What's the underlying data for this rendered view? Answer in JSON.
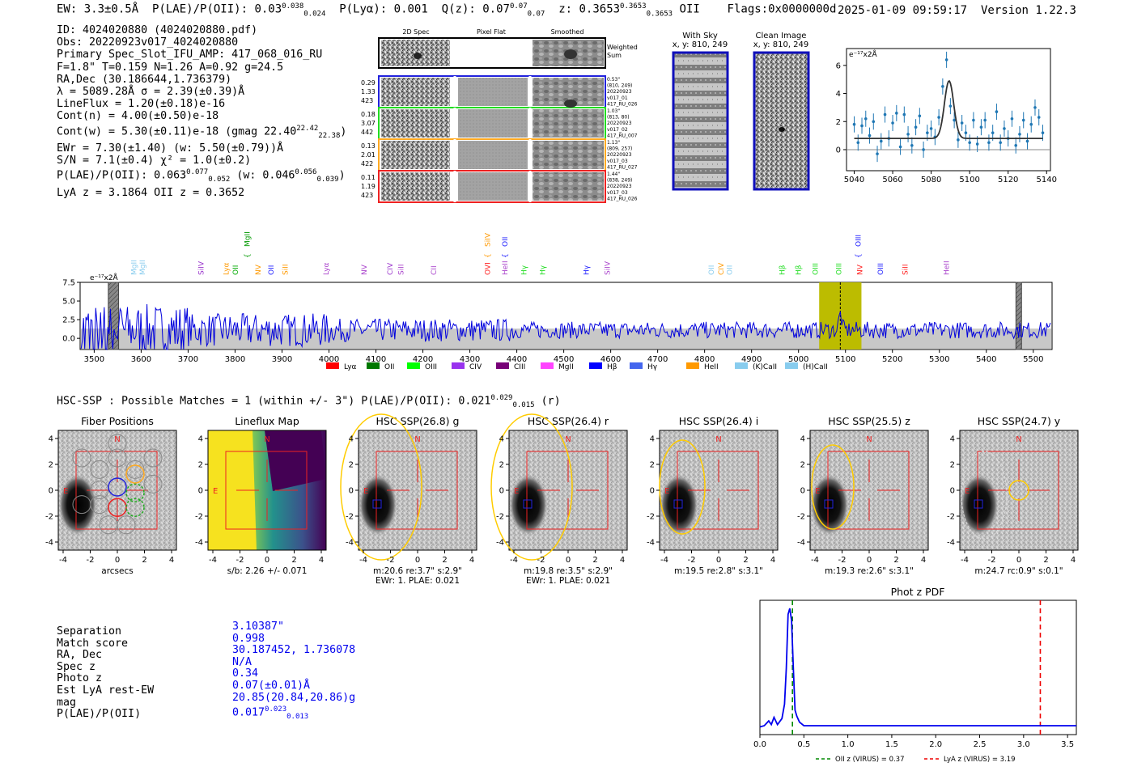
{
  "header": {
    "ew": "EW: 3.3±0.5Å",
    "plae_label": "P(LAE)/P(OII): 0.03",
    "plae_hi": "0.038",
    "plae_lo": "0.024",
    "plya": "P(Lyα): 0.001",
    "qz_label": "Q(z): 0.07",
    "qz_hi": "0.07",
    "qz_lo": "0.07",
    "z_label": "z: 0.3653",
    "z_hi": "0.3653",
    "z_lo": "0.3653",
    "z_line": "OII",
    "flags": "Flags:0x0000000d",
    "timestamp": "2025-01-09 09:59:17",
    "version": "Version 1.22.3"
  },
  "info": {
    "id": "ID: 4024020880 (4024020880.pdf)",
    "obs": "Obs: 20220923v017_4024020880",
    "primary": "Primary Spec_Slot_IFU_AMP: 417_068_016_RU",
    "fit": "F=1.8\"  T=0.159  N=1.26  A=0.92  g=24.5",
    "radec": "RA,Dec (30.186644,1.736379)",
    "lambda": "λ = 5089.28Å  σ = 2.39(±0.39)Å",
    "lineflux": "LineFlux = 1.20(±0.18)e-16",
    "contn": "Cont(n) = 4.00(±0.50)e-18",
    "contw": "Cont(w) = 5.30(±0.11)e-18 (gmag 22.40",
    "contw_hi": "22.42",
    "contw_lo": "22.38",
    "contw_end": ")",
    "ewr": "EWr = 7.30(±1.40) (w: 5.50(±0.79))Å",
    "sn": "S/N = 7.1(±0.4)  χ² = 1.0(±0.2)",
    "plae": "P(LAE)/P(OII): 0.063",
    "plae_hi": "0.077",
    "plae_lo": "0.052",
    "plae_w": "(w: 0.046",
    "plae_w_hi": "0.056",
    "plae_w_lo": "0.039",
    "plae_w_end": ")",
    "lya": "LyA z = 3.1864  OII z = 0.3652"
  },
  "cutouts": {
    "col_labels": [
      "2D Spec",
      "Pixel Flat",
      "Smoothed"
    ],
    "weighted_sum": [
      "Weighted",
      "Sum"
    ],
    "rows": [
      {
        "left": [
          "0.29",
          "1.33",
          "423"
        ],
        "right": [
          "0.53\"",
          "(810, 249)",
          "20220923",
          "v017_01",
          "417_RU_026"
        ],
        "color": "#2222dd"
      },
      {
        "left": [
          "0.18",
          "3.07",
          "442"
        ],
        "right": [
          "1.03\"",
          "(813, 80)",
          "20220923",
          "v017_02",
          "417_RU_007"
        ],
        "color": "#22dd22"
      },
      {
        "left": [
          "0.13",
          "2.01",
          "422"
        ],
        "right": [
          "1.13\"",
          "(809, 257)",
          "20220923",
          "v017_03",
          "417_RU_027"
        ],
        "color": "#ffaa22"
      },
      {
        "left": [
          "0.11",
          "1.19",
          "423"
        ],
        "right": [
          "1.44\"",
          "(838, 249)",
          "20220923",
          "v017_03",
          "417_RU_026"
        ],
        "color": "#ee2222"
      }
    ]
  },
  "sky": {
    "with_sky_title": "With Sky",
    "with_sky_coords": "x, y: 810, 249",
    "clean_title": "Clean Image",
    "clean_coords": "x, y: 810, 249"
  },
  "zoom_chart_data": {
    "type": "scatter",
    "ylabel_unit": "e⁻¹⁷x2Å",
    "xlim": [
      5036,
      5142
    ],
    "ylim": [
      -1.5,
      7.2
    ],
    "xticks": [
      "5040",
      "5060",
      "5080",
      "5100",
      "5120",
      "5140"
    ],
    "yticks": [
      "0",
      "2",
      "4",
      "6"
    ],
    "x": [
      5040,
      5042,
      5044,
      5046,
      5048,
      5050,
      5052,
      5054,
      5056,
      5058,
      5060,
      5062,
      5064,
      5066,
      5068,
      5070,
      5072,
      5074,
      5076,
      5078,
      5080,
      5082,
      5084,
      5086,
      5088,
      5090,
      5092,
      5094,
      5096,
      5098,
      5100,
      5102,
      5104,
      5106,
      5108,
      5110,
      5112,
      5114,
      5116,
      5118,
      5120,
      5122,
      5124,
      5126,
      5128,
      5130,
      5132,
      5134,
      5136,
      5138
    ],
    "y": [
      1.8,
      0.5,
      1.7,
      2.2,
      1.0,
      2.0,
      -0.3,
      0.6,
      2.5,
      0.8,
      1.9,
      2.6,
      0.2,
      2.5,
      1.1,
      0.3,
      1.6,
      2.4,
      0.0,
      1.2,
      1.5,
      0.9,
      2.3,
      4.5,
      6.4,
      3.1,
      2.1,
      0.7,
      1.9,
      1.2,
      0.5,
      2.1,
      0.4,
      1.6,
      2.1,
      0.5,
      1.2,
      2.7,
      0.5,
      1.5,
      0.8,
      2.2,
      0.3,
      1.1,
      2.1,
      0.6,
      1.8,
      3.0,
      2.3,
      1.2
    ],
    "fit_continuum": 0.8,
    "fit_amp": 4.1,
    "fit_center": 5089.3,
    "fit_sigma": 2.4
  },
  "spectrum_chart_data": {
    "type": "line",
    "ylabel_unit": "e⁻¹⁷x2Å",
    "xlim": [
      3470,
      5540
    ],
    "ylim": [
      -1.5,
      7.5
    ],
    "xticks": [
      "3500",
      "3600",
      "3700",
      "3800",
      "3900",
      "4000",
      "4100",
      "4200",
      "4300",
      "4400",
      "4500",
      "4600",
      "4700",
      "4800",
      "4900",
      "5000",
      "5100",
      "5200",
      "5300",
      "5400",
      "5500"
    ],
    "yticks": [
      "0.0",
      "2.5",
      "5.0",
      "7.5"
    ],
    "highlight_range": [
      5044,
      5134
    ],
    "line_center": 5089,
    "masked_ranges": [
      [
        3530,
        3552
      ],
      [
        5463,
        5475
      ]
    ],
    "line_markers": [
      {
        "label": "MgII",
        "x": 3585,
        "color": "#88ccee",
        "tier": 1
      },
      {
        "label": "MgII",
        "x": 3603,
        "color": "#88ccee",
        "tier": 1
      },
      {
        "label": "SiIV",
        "x": 3728,
        "color": "#9933cc",
        "tier": 1
      },
      {
        "label": "Lyα",
        "x": 3781,
        "color": "#ff9900",
        "tier": 1
      },
      {
        "label": "OII",
        "x": 3801,
        "color": "#00aa00",
        "tier": 1
      },
      {
        "label": "MgII",
        "x": 3826,
        "color": "#009900",
        "tier": 0
      },
      {
        "label": "NV",
        "x": 3849,
        "color": "#ff9900",
        "tier": 1
      },
      {
        "label": "OII",
        "x": 3877,
        "color": "#2222ff",
        "tier": 1
      },
      {
        "label": "SiII",
        "x": 3907,
        "color": "#ff9900",
        "tier": 1
      },
      {
        "label": "Lyα",
        "x": 3994,
        "color": "#aa44cc",
        "tier": 1
      },
      {
        "label": "NV",
        "x": 4075,
        "color": "#aa44cc",
        "tier": 1
      },
      {
        "label": "CIV",
        "x": 4130,
        "color": "#9933cc",
        "tier": 1
      },
      {
        "label": "SiII",
        "x": 4153,
        "color": "#aa44cc",
        "tier": 1
      },
      {
        "label": "CII",
        "x": 4223,
        "color": "#aa44cc",
        "tier": 1
      },
      {
        "label": "SiIV",
        "x": 4338,
        "color": "#ff9900",
        "tier": 0
      },
      {
        "label": "OVI",
        "x": 4338,
        "color": "#ff2222",
        "tier": 1
      },
      {
        "label": "OII",
        "x": 4375,
        "color": "#2222ff",
        "tier": 0
      },
      {
        "label": "HeII",
        "x": 4375,
        "color": "#aa44cc",
        "tier": 1
      },
      {
        "label": "Hγ",
        "x": 4415,
        "color": "#22dd22",
        "tier": 1
      },
      {
        "label": "Hγ",
        "x": 4455,
        "color": "#22dd22",
        "tier": 1
      },
      {
        "label": "Hγ",
        "x": 4548,
        "color": "#2222ff",
        "tier": 1
      },
      {
        "label": "SiIV",
        "x": 4593,
        "color": "#aa44cc",
        "tier": 1
      },
      {
        "label": "OII",
        "x": 4814,
        "color": "#88ccee",
        "tier": 1
      },
      {
        "label": "CIV",
        "x": 4835,
        "color": "#ff9900",
        "tier": 1
      },
      {
        "label": "OII",
        "x": 4853,
        "color": "#88ccee",
        "tier": 1
      },
      {
        "label": "Hβ",
        "x": 4965,
        "color": "#22dd22",
        "tier": 1
      },
      {
        "label": "Hβ",
        "x": 5000,
        "color": "#22dd22",
        "tier": 1
      },
      {
        "label": "OIII",
        "x": 5036,
        "color": "#22dd22",
        "tier": 1
      },
      {
        "label": "OIII",
        "x": 5086,
        "color": "#22dd22",
        "tier": 1
      },
      {
        "label": "OIII",
        "x": 5127,
        "color": "#2222ff",
        "tier": 0
      },
      {
        "label": "NV",
        "x": 5131,
        "color": "#ff2222",
        "tier": 1
      },
      {
        "label": "OIII",
        "x": 5175,
        "color": "#2222ff",
        "tier": 1
      },
      {
        "label": "SiII",
        "x": 5227,
        "color": "#ff2222",
        "tier": 1
      },
      {
        "label": "HeII",
        "x": 5315,
        "color": "#aa44cc",
        "tier": 1
      }
    ],
    "legend": [
      {
        "label": "Lyα",
        "color": "#ff0000"
      },
      {
        "label": "OII",
        "color": "#007700"
      },
      {
        "label": "OIII",
        "color": "#00ff00"
      },
      {
        "label": "CIV",
        "color": "#9933ee"
      },
      {
        "label": "CIII",
        "color": "#770077"
      },
      {
        "label": "MgII",
        "color": "#ff44ff"
      },
      {
        "label": "Hβ",
        "color": "#0000ff"
      },
      {
        "label": "Hγ",
        "color": "#4466ee"
      },
      {
        "label": "HeII",
        "color": "#ff9900"
      },
      {
        "label": "(K)CaII",
        "color": "#88ccee"
      },
      {
        "label": "(H)CaII",
        "color": "#88ccee"
      }
    ]
  },
  "hsc": {
    "title": "HSC-SSP : Possible Matches = 1 (within +/- 3\")  P(LAE)/P(OII): 0.021",
    "title_hi": "0.029",
    "title_lo": "0.015",
    "title_band": "(r)",
    "panels": [
      {
        "title": "Fiber Positions",
        "north": "N",
        "east": "E",
        "caption1": "arcsecs",
        "caption2": ""
      },
      {
        "title": "Lineflux Map",
        "north": "N",
        "east": "E",
        "caption1": "s/b: 2.26 +/- 0.071",
        "caption2": ""
      },
      {
        "title": "HSC SSP(26.8) g",
        "north": "N",
        "east": "E",
        "caption1": "m:20.6  re:3.7\"  s:2.9\"",
        "caption2": "EWr: 1. PLAE: 0.021"
      },
      {
        "title": "HSC SSP(26.4) r",
        "north": "N",
        "east": "E",
        "caption1": "m:19.8  re:3.5\"  s:2.9\"",
        "caption2": "EWr: 1. PLAE: 0.021"
      },
      {
        "title": "HSC SSP(26.4) i",
        "north": "N",
        "east": "E",
        "caption1": "m:19.5  re:2.8\"  s:3.1\"",
        "caption2": ""
      },
      {
        "title": "HSC SSP(25.5) z",
        "north": "N",
        "east": "E",
        "caption1": "m:19.3  re:2.6\"  s:3.1\"",
        "caption2": ""
      },
      {
        "title": "HSC SSP(24.7) y",
        "north": "N",
        "east": "E",
        "caption1": "m:24.7  rc:0.9\"  s:0.1\"",
        "caption2": ""
      }
    ],
    "axis_ticks": [
      "-4",
      "-2",
      "0",
      "2",
      "4"
    ]
  },
  "separation": {
    "labels": [
      "Separation",
      "Match score",
      "RA, Dec",
      "Spec z",
      "Photo z",
      "Est LyA rest-EW",
      "mag",
      "P(LAE)/P(OII)"
    ],
    "values": [
      "3.10387\"",
      "0.998",
      "30.187452, 1.736078",
      "N/A",
      "0.34",
      "0.07(±0.01)Å",
      "20.85(20.84,20.86)g",
      "0.017"
    ],
    "plae_hi": "0.023",
    "plae_lo": "0.013"
  },
  "photz_chart_data": {
    "type": "line",
    "title": "Phot z PDF",
    "xlim": [
      0,
      3.6
    ],
    "xticks": [
      "0.0",
      "0.5",
      "1.0",
      "1.5",
      "2.0",
      "2.5",
      "3.0",
      "3.5"
    ],
    "x": [
      0,
      0.05,
      0.1,
      0.13,
      0.16,
      0.2,
      0.25,
      0.28,
      0.3,
      0.32,
      0.34,
      0.36,
      0.38,
      0.4,
      0.42,
      0.45,
      0.5,
      0.6,
      1.0,
      2.0,
      3.0,
      3.6
    ],
    "y": [
      0.01,
      0.02,
      0.06,
      0.03,
      0.09,
      0.03,
      0.08,
      0.2,
      0.5,
      0.95,
      1.0,
      0.9,
      0.5,
      0.15,
      0.1,
      0.05,
      0.02,
      0.02,
      0.02,
      0.02,
      0.02,
      0.02
    ],
    "vlines": [
      {
        "x": 0.37,
        "color": "#008800",
        "label": "OII z (VIRUS) = 0.37"
      },
      {
        "x": 3.19,
        "color": "#ee0000",
        "label": "LyA z (VIRUS) = 3.19"
      }
    ]
  }
}
